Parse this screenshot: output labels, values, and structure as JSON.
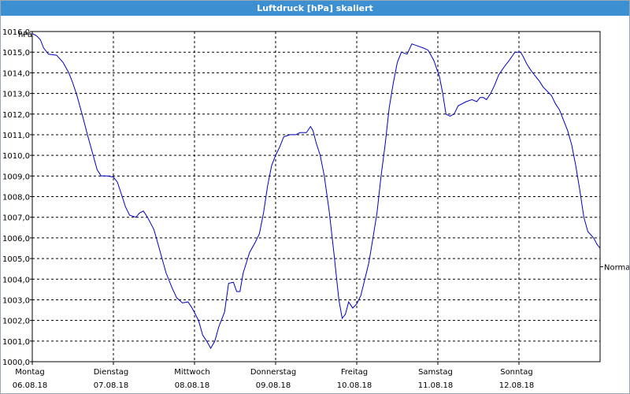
{
  "window": {
    "title": "Luftdruck [hPa] skaliert"
  },
  "chart_data": {
    "type": "line",
    "title": "Luftdruck [hPa] skaliert",
    "ylabel": "hPa",
    "ylim": [
      1000.0,
      1016.0
    ],
    "yticks": [
      "1000,0",
      "1001,0",
      "1002,0",
      "1003,0",
      "1004,0",
      "1005,0",
      "1006,0",
      "1007,0",
      "1008,0",
      "1009,0",
      "1010,0",
      "1011,0",
      "1012,0",
      "1013,0",
      "1014,0",
      "1015,0",
      "1016,0"
    ],
    "xlim": [
      0,
      7
    ],
    "xticks": [
      {
        "day": "Montag",
        "date": "06.08.18"
      },
      {
        "day": "Dienstag",
        "date": "07.08.18"
      },
      {
        "day": "Mittwoch",
        "date": "08.08.18"
      },
      {
        "day": "Donnerstag",
        "date": "09.08.18"
      },
      {
        "day": "Freitag",
        "date": "10.08.18"
      },
      {
        "day": "Samstag",
        "date": "11.08.18"
      },
      {
        "day": "Sonntag",
        "date": "12.08.18"
      }
    ],
    "reference_line": {
      "label": "Normal",
      "value": 1004.6
    },
    "grid": true,
    "line_color": "#0000c0",
    "series": [
      {
        "points": [
          [
            0.0,
            1015.9
          ],
          [
            0.05,
            1015.8
          ],
          [
            0.1,
            1015.6
          ],
          [
            0.14,
            1015.2
          ],
          [
            0.2,
            1014.9
          ],
          [
            0.3,
            1014.85
          ],
          [
            0.38,
            1014.5
          ],
          [
            0.45,
            1014.0
          ],
          [
            0.5,
            1013.5
          ],
          [
            0.55,
            1012.9
          ],
          [
            0.62,
            1011.9
          ],
          [
            0.68,
            1011.0
          ],
          [
            0.75,
            1010.0
          ],
          [
            0.8,
            1009.3
          ],
          [
            0.85,
            1009.0
          ],
          [
            0.92,
            1009.0
          ],
          [
            1.0,
            1008.95
          ],
          [
            1.05,
            1008.7
          ],
          [
            1.1,
            1008.1
          ],
          [
            1.15,
            1007.5
          ],
          [
            1.2,
            1007.1
          ],
          [
            1.28,
            1007.0
          ],
          [
            1.32,
            1007.2
          ],
          [
            1.37,
            1007.3
          ],
          [
            1.42,
            1007.0
          ],
          [
            1.5,
            1006.4
          ],
          [
            1.55,
            1005.7
          ],
          [
            1.6,
            1005.0
          ],
          [
            1.65,
            1004.3
          ],
          [
            1.72,
            1003.6
          ],
          [
            1.78,
            1003.1
          ],
          [
            1.85,
            1002.85
          ],
          [
            1.92,
            1002.9
          ],
          [
            1.97,
            1002.6
          ],
          [
            2.05,
            1002.0
          ],
          [
            2.1,
            1001.3
          ],
          [
            2.15,
            1001.0
          ],
          [
            2.2,
            1000.65
          ],
          [
            2.25,
            1001.0
          ],
          [
            2.3,
            1001.7
          ],
          [
            2.37,
            1002.4
          ],
          [
            2.42,
            1003.8
          ],
          [
            2.48,
            1003.85
          ],
          [
            2.52,
            1003.4
          ],
          [
            2.56,
            1003.4
          ],
          [
            2.6,
            1004.3
          ],
          [
            2.68,
            1005.3
          ],
          [
            2.75,
            1005.8
          ],
          [
            2.8,
            1006.2
          ],
          [
            2.85,
            1007.2
          ],
          [
            2.9,
            1008.5
          ],
          [
            2.95,
            1009.5
          ],
          [
            3.0,
            1010.0
          ],
          [
            3.05,
            1010.4
          ],
          [
            3.1,
            1010.9
          ],
          [
            3.18,
            1011.0
          ],
          [
            3.25,
            1011.0
          ],
          [
            3.3,
            1011.1
          ],
          [
            3.38,
            1011.1
          ],
          [
            3.43,
            1011.4
          ],
          [
            3.46,
            1011.2
          ],
          [
            3.5,
            1010.6
          ],
          [
            3.55,
            1010.0
          ],
          [
            3.6,
            1009.0
          ],
          [
            3.66,
            1007.3
          ],
          [
            3.72,
            1005.2
          ],
          [
            3.78,
            1003.0
          ],
          [
            3.82,
            1002.1
          ],
          [
            3.86,
            1002.3
          ],
          [
            3.9,
            1002.9
          ],
          [
            3.95,
            1002.6
          ],
          [
            4.0,
            1002.8
          ],
          [
            4.05,
            1003.2
          ],
          [
            4.1,
            1004.0
          ],
          [
            4.15,
            1004.8
          ],
          [
            4.2,
            1006.0
          ],
          [
            4.25,
            1007.2
          ],
          [
            4.3,
            1009.0
          ],
          [
            4.35,
            1010.5
          ],
          [
            4.4,
            1012.3
          ],
          [
            4.45,
            1013.5
          ],
          [
            4.5,
            1014.5
          ],
          [
            4.55,
            1015.0
          ],
          [
            4.62,
            1014.9
          ],
          [
            4.68,
            1015.4
          ],
          [
            4.75,
            1015.3
          ],
          [
            4.82,
            1015.2
          ],
          [
            4.88,
            1015.1
          ],
          [
            4.95,
            1014.6
          ],
          [
            5.02,
            1013.8
          ],
          [
            5.06,
            1013.0
          ],
          [
            5.1,
            1012.0
          ],
          [
            5.15,
            1011.9
          ],
          [
            5.2,
            1012.0
          ],
          [
            5.25,
            1012.4
          ],
          [
            5.35,
            1012.6
          ],
          [
            5.42,
            1012.7
          ],
          [
            5.48,
            1012.6
          ],
          [
            5.52,
            1012.8
          ],
          [
            5.56,
            1012.8
          ],
          [
            5.6,
            1012.7
          ],
          [
            5.65,
            1013.0
          ],
          [
            5.7,
            1013.4
          ],
          [
            5.75,
            1013.9
          ],
          [
            5.82,
            1014.3
          ],
          [
            5.88,
            1014.6
          ],
          [
            5.95,
            1015.0
          ],
          [
            6.02,
            1015.0
          ],
          [
            6.05,
            1014.8
          ],
          [
            6.1,
            1014.4
          ],
          [
            6.15,
            1014.1
          ],
          [
            6.25,
            1013.6
          ],
          [
            6.3,
            1013.3
          ],
          [
            6.35,
            1013.1
          ],
          [
            6.4,
            1012.9
          ],
          [
            6.45,
            1012.5
          ],
          [
            6.5,
            1012.2
          ],
          [
            6.55,
            1011.7
          ],
          [
            6.6,
            1011.2
          ],
          [
            6.65,
            1010.5
          ],
          [
            6.7,
            1009.5
          ],
          [
            6.75,
            1008.3
          ],
          [
            6.8,
            1007.0
          ],
          [
            6.85,
            1006.3
          ],
          [
            6.92,
            1006.0
          ],
          [
            6.96,
            1005.7
          ],
          [
            7.0,
            1005.5
          ]
        ]
      }
    ]
  }
}
